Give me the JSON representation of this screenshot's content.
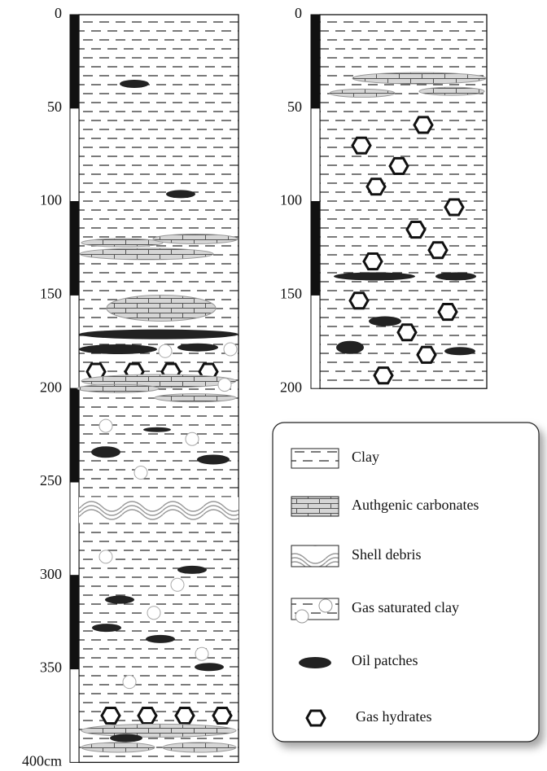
{
  "cores": [
    {
      "depth_labels": [
        "0",
        "50",
        "100",
        "150",
        "200",
        "250",
        "300",
        "350",
        "400cm"
      ]
    },
    {
      "depth_labels": [
        "0",
        "50",
        "100",
        "150",
        "200"
      ]
    }
  ],
  "legend": {
    "items": [
      "Clay",
      "Authgenic carbonates",
      "Shell debris",
      "Gas saturated clay",
      "Oil patches",
      "Gas hydrates"
    ]
  }
}
